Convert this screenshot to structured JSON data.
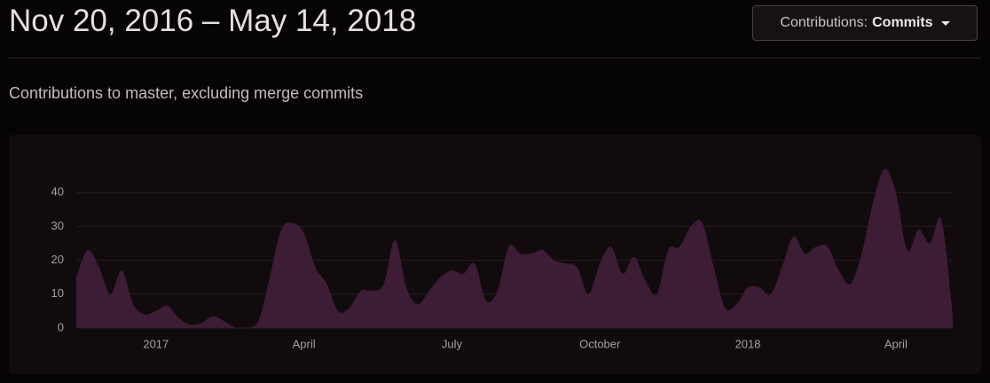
{
  "header": {
    "title": "Nov 20, 2016 – May 14, 2018",
    "button": {
      "label": "Contributions:",
      "value": "Commits"
    },
    "subtitle": "Contributions to master, excluding merge commits"
  },
  "chart_data": {
    "type": "area",
    "categories": [
      null,
      null,
      null,
      null,
      null,
      null,
      null,
      "2017",
      null,
      null,
      null,
      null,
      null,
      null,
      null,
      null,
      null,
      null,
      null,
      null,
      "April",
      null,
      null,
      null,
      null,
      null,
      null,
      null,
      null,
      null,
      null,
      null,
      null,
      "July",
      null,
      null,
      null,
      null,
      null,
      null,
      null,
      null,
      null,
      null,
      null,
      null,
      "October",
      null,
      null,
      null,
      null,
      null,
      null,
      null,
      null,
      null,
      null,
      null,
      null,
      "2018",
      null,
      null,
      null,
      null,
      null,
      null,
      null,
      null,
      null,
      null,
      null,
      null,
      "April",
      null,
      null,
      null,
      null,
      null
    ],
    "values": [
      15,
      23,
      18,
      10,
      17,
      7,
      4,
      5,
      6.5,
      3,
      1,
      1.5,
      3.5,
      2,
      0,
      0,
      2,
      15,
      29,
      31,
      28,
      18,
      13,
      5,
      6,
      11,
      11,
      13,
      26,
      12,
      7,
      11,
      15,
      17,
      16,
      19,
      8,
      11,
      24,
      22,
      22,
      23,
      20,
      19,
      18,
      10,
      19,
      24,
      16,
      21,
      14,
      10,
      23,
      24,
      30,
      31,
      18,
      6,
      7,
      12,
      12,
      10,
      18,
      27,
      22,
      24,
      24,
      17,
      13,
      22,
      37,
      47,
      40,
      23,
      29,
      25,
      32,
      4
    ],
    "color": "#3d1c36",
    "ylim": [
      0,
      50
    ],
    "yticks": [
      0,
      10,
      20,
      30,
      40
    ],
    "grid": true
  }
}
